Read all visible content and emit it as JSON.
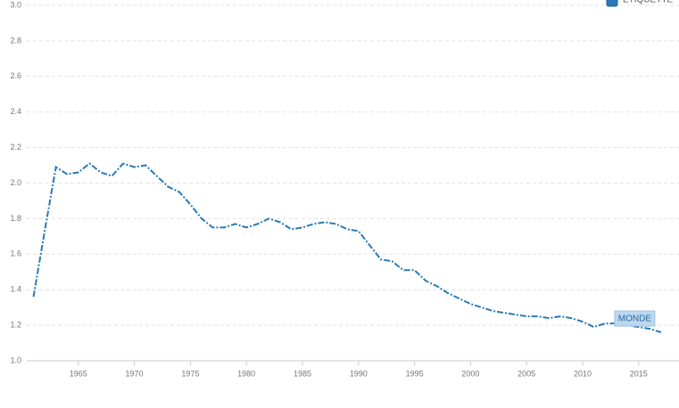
{
  "chart_data": {
    "type": "line",
    "legend_title": "ÉTIQUETTE",
    "x": [
      1961,
      1962,
      1963,
      1964,
      1965,
      1966,
      1967,
      1968,
      1969,
      1970,
      1971,
      1972,
      1973,
      1974,
      1975,
      1976,
      1977,
      1978,
      1979,
      1980,
      1981,
      1982,
      1983,
      1984,
      1985,
      1986,
      1987,
      1988,
      1989,
      1990,
      1991,
      1992,
      1993,
      1994,
      1995,
      1996,
      1997,
      1998,
      1999,
      2000,
      2001,
      2002,
      2003,
      2004,
      2005,
      2006,
      2007,
      2008,
      2009,
      2010,
      2011,
      2012,
      2013,
      2014,
      2015,
      2016,
      2017
    ],
    "series": [
      {
        "name": "MONDE",
        "color": "#2a7ab8",
        "values": [
          1.36,
          1.73,
          2.09,
          2.05,
          2.06,
          2.11,
          2.06,
          2.04,
          2.11,
          2.09,
          2.1,
          2.04,
          1.98,
          1.95,
          1.88,
          1.8,
          1.75,
          1.75,
          1.77,
          1.75,
          1.77,
          1.8,
          1.78,
          1.74,
          1.75,
          1.77,
          1.78,
          1.77,
          1.74,
          1.73,
          1.65,
          1.57,
          1.56,
          1.51,
          1.51,
          1.45,
          1.42,
          1.38,
          1.35,
          1.32,
          1.3,
          1.28,
          1.27,
          1.26,
          1.25,
          1.25,
          1.24,
          1.25,
          1.24,
          1.22,
          1.19,
          1.21,
          1.21,
          1.2,
          1.19,
          1.18,
          1.16
        ]
      }
    ],
    "xlim": [
      1960.4,
      2018.6
    ],
    "xticks": [
      1965,
      1970,
      1975,
      1980,
      1985,
      1990,
      1995,
      2000,
      2005,
      2010,
      2015
    ],
    "ylim": [
      1,
      3
    ],
    "yticks": [
      {
        "value": 1,
        "label": "1.0"
      },
      1.2,
      1.4,
      1.6,
      1.8,
      {
        "value": 2,
        "label": "2.0"
      },
      2.2,
      2.4,
      2.6,
      2.8,
      {
        "value": 3,
        "label": "3.0"
      }
    ],
    "grid": true
  }
}
